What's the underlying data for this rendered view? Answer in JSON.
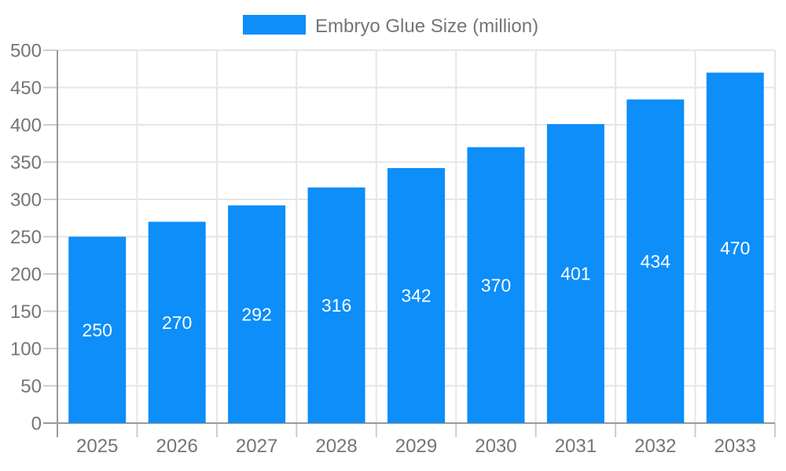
{
  "chart_data": {
    "type": "bar",
    "title": "",
    "legend_label": "Embryo Glue Size (million)",
    "categories": [
      "2025",
      "2026",
      "2027",
      "2028",
      "2029",
      "2030",
      "2031",
      "2032",
      "2033"
    ],
    "series": [
      {
        "name": "Embryo Glue Size (million)",
        "values": [
          250,
          270,
          292,
          316,
          342,
          370,
          401,
          434,
          470
        ]
      }
    ],
    "value_labels": [
      "250",
      "270",
      "292",
      "316",
      "342",
      "370",
      "401",
      "434",
      "470"
    ],
    "xlabel": "",
    "ylabel": "",
    "ylim": [
      0,
      500
    ],
    "ytick_step": 50,
    "yticks": [
      0,
      50,
      100,
      150,
      200,
      250,
      300,
      350,
      400,
      450,
      500
    ],
    "grid": true,
    "legend_position": "top",
    "colors": {
      "bar_fill": "#0D8EF8",
      "grid_line": "#e6e6e6",
      "axis_line": "#9a9a9a",
      "tick_mark": "#cccccc",
      "label_text": "#757575",
      "value_text": "#ffffff",
      "background": "#ffffff"
    }
  }
}
